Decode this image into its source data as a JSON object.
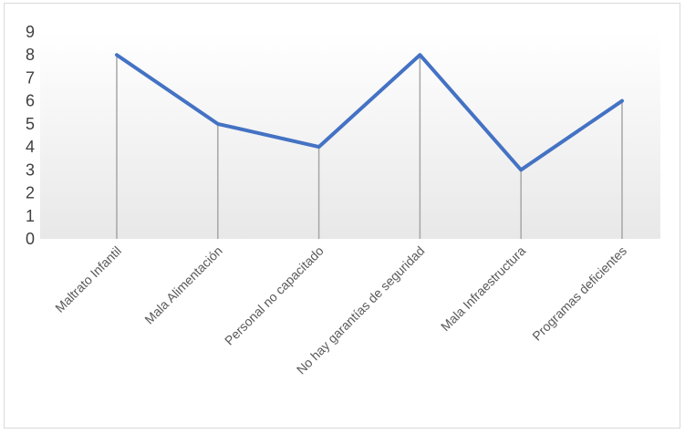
{
  "chart_data": {
    "type": "line",
    "categories": [
      "Maltrato Infantil",
      "Mala Alimentación",
      "Personal no capacitado",
      "No hay garantías de seguridad",
      "Mala Infraestructura",
      "Programas deficientes"
    ],
    "values": [
      8,
      5,
      4,
      8,
      3,
      6
    ],
    "ylim": [
      0,
      9
    ],
    "yticks": [
      "0",
      "1",
      "2",
      "3",
      "4",
      "5",
      "6",
      "7",
      "8",
      "9"
    ],
    "grid": false,
    "drop_lines": true,
    "colors": {
      "line": "#4472c4",
      "drop_line": "#a6a6a6",
      "plot_gradient_top": "#ffffff",
      "plot_gradient_bottom": "#e8e8e8"
    }
  }
}
